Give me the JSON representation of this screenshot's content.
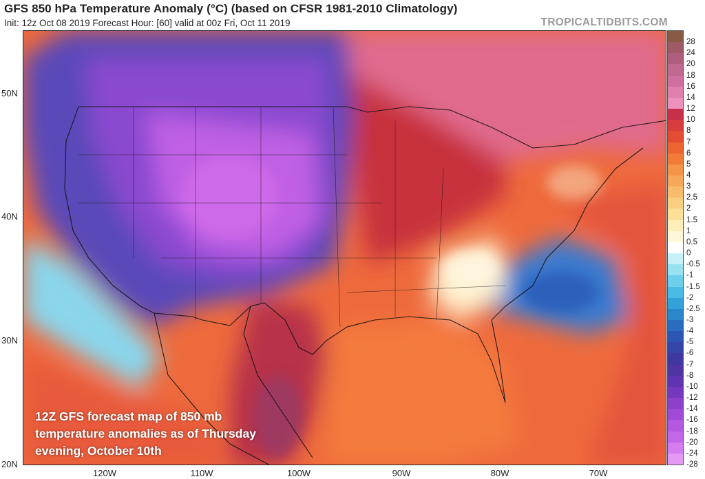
{
  "header": {
    "title": "GFS 850 hPa Temperature Anomaly (°C) (based on CFSR 1981-2010 Climatology)",
    "subtitle": "Init: 12z Oct 08 2019   Forecast Hour: [60]   valid at 00z Fri, Oct 11 2019",
    "brand": "TROPICALTIDBITS.COM"
  },
  "map": {
    "lat_labels": [
      "50N",
      "40N",
      "30N",
      "20N"
    ],
    "lon_labels": [
      "120W",
      "110W",
      "100W",
      "90W",
      "80W",
      "70W"
    ],
    "annotation": [
      "12Z GFS forecast map of 850 mb",
      "temperature anomalies as of Thursday",
      "evening, October 10th"
    ]
  },
  "colorbar": {
    "labels": [
      "28",
      "24",
      "20",
      "18",
      "16",
      "14",
      "12",
      "10",
      "8",
      "7",
      "6",
      "5",
      "4",
      "3",
      "2.5",
      "2",
      "1.5",
      "1",
      "0.5",
      "0",
      "-0.5",
      "-1",
      "-1.5",
      "-2",
      "-2.5",
      "-3",
      "-4",
      "-5",
      "-6",
      "-7",
      "-8",
      "-10",
      "-12",
      "-14",
      "-16",
      "-18",
      "-20",
      "-24",
      "-28"
    ],
    "colors": [
      "#8b5a46",
      "#a05a66",
      "#b05e7e",
      "#c06890",
      "#d0709e",
      "#e080ac",
      "#ec90bc",
      "#c8304a",
      "#d83c3c",
      "#e44c34",
      "#ec6430",
      "#f07c38",
      "#f49448",
      "#f6a858",
      "#f8bc6c",
      "#fad080",
      "#fce098",
      "#feefb8",
      "#fff8d8",
      "#ffffff",
      "#c8f0f8",
      "#98e2f2",
      "#6cd0ec",
      "#48bce4",
      "#34a2d8",
      "#2c86cc",
      "#2a6cc0",
      "#2c56b4",
      "#3444a8",
      "#4038a0",
      "#5034a4",
      "#6034b0",
      "#7638be",
      "#8c40cc",
      "#a24ad8",
      "#b458e2",
      "#c466ea",
      "#d47cf0",
      "#e49af4"
    ]
  }
}
